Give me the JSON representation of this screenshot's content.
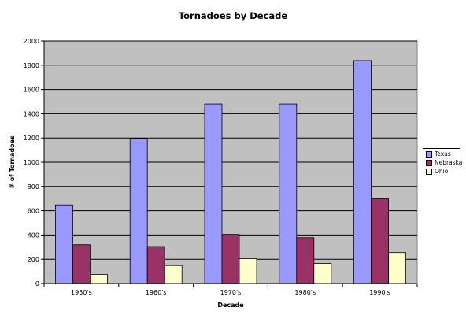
{
  "chart_data": {
    "type": "bar",
    "title": "Tornadoes by Decade",
    "xlabel": "Decade",
    "ylabel": "# of Tornadoes",
    "categories": [
      "1950's",
      "1960's",
      "1970's",
      "1980's",
      "1990's"
    ],
    "ylim": [
      0,
      2000
    ],
    "yticks": [
      "0",
      "200",
      "400",
      "600",
      "800",
      "1000",
      "1200",
      "1400",
      "1600",
      "1800",
      "2000"
    ],
    "grid": true,
    "legend_position": "right",
    "plot_background": "#c0c0c0",
    "series": [
      {
        "name": "Texas",
        "color": "#9999ff",
        "values": [
          648,
          1195,
          1480,
          1480,
          1838
        ]
      },
      {
        "name": "Nebraska",
        "color": "#993366",
        "values": [
          320,
          305,
          405,
          378,
          698
        ]
      },
      {
        "name": "Ohio",
        "color": "#ffffcc",
        "values": [
          75,
          148,
          205,
          165,
          255
        ]
      }
    ]
  }
}
